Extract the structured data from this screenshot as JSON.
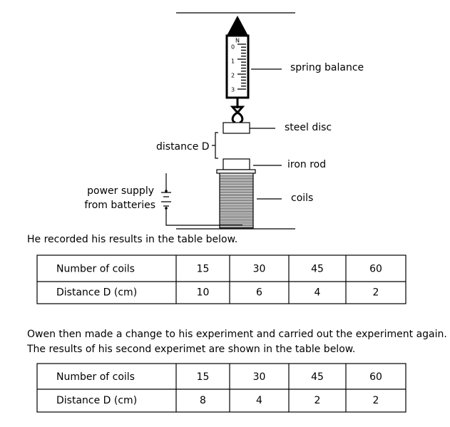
{
  "diagram": {
    "scale_unit": "N",
    "scale_numbers": [
      "0",
      "1",
      "2",
      "3"
    ],
    "labels": {
      "spring_balance": "spring balance",
      "steel_disc": "steel disc",
      "distance": "distance D",
      "iron_rod": "iron rod",
      "coils": "coils",
      "power_supply": [
        "power supply",
        "from batteries"
      ]
    }
  },
  "text1": "He recorded his results in the table below.",
  "table1": {
    "rows": [
      [
        "Number of coils",
        "15",
        "30",
        "45",
        "60"
      ],
      [
        "Distance D (cm)",
        "10",
        "6",
        "4",
        "2"
      ]
    ]
  },
  "text2": [
    "Owen then made a change to his experiment and carried out the experiment again.",
    "The results of his second experimet are shown in the table below."
  ],
  "table2": {
    "rows": [
      [
        "Number of coils",
        "15",
        "30",
        "45",
        "60"
      ],
      [
        "Distance D (cm)",
        "8",
        "4",
        "2",
        "2"
      ]
    ]
  }
}
